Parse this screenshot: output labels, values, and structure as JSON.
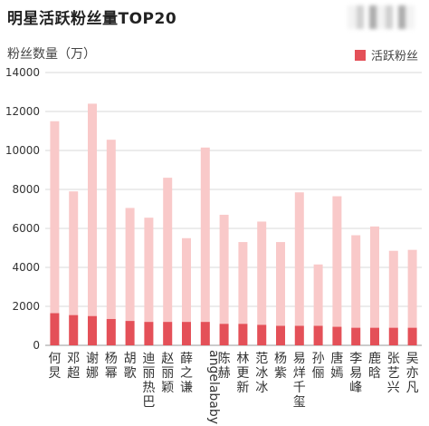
{
  "title": "明星活跃粉丝量TOP20",
  "colors": {
    "total": "#f9c9c9",
    "active": "#e45058",
    "grid": "#d9d9d9"
  },
  "chart_data": {
    "type": "bar",
    "title": "明星活跃粉丝量TOP20",
    "ylabel": "粉丝数量（万）",
    "ylim": [
      0,
      14000
    ],
    "yticks": [
      0,
      2000,
      4000,
      6000,
      8000,
      10000,
      12000,
      14000
    ],
    "legend_position": "top-right",
    "categories": [
      "何炅",
      "邓超",
      "谢娜",
      "杨幂",
      "胡歌",
      "迪丽热巴",
      "赵丽颖",
      "薛之谦",
      "angelababy",
      "陈赫",
      "林更新",
      "范冰冰",
      "杨紫",
      "易烊千玺",
      "孙俪",
      "唐嫣",
      "李易峰",
      "鹿晗",
      "张艺兴",
      "吴亦凡"
    ],
    "series": [
      {
        "values": [
          11500,
          7900,
          12400,
          10550,
          7050,
          6550,
          8600,
          5500,
          10150,
          6700,
          5300,
          6350,
          5300,
          7850,
          4150,
          7650,
          5650,
          6100,
          4850,
          4900
        ]
      },
      {
        "name": "活跃粉丝",
        "values": [
          1650,
          1550,
          1500,
          1350,
          1250,
          1200,
          1200,
          1200,
          1200,
          1100,
          1100,
          1050,
          1000,
          1000,
          1000,
          950,
          900,
          900,
          900,
          900
        ]
      }
    ]
  }
}
